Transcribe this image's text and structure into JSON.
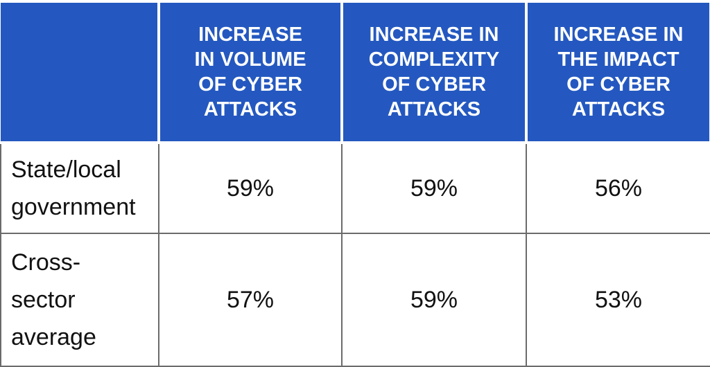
{
  "chart_data": {
    "type": "table",
    "columns": [
      "INCREASE IN VOLUME OF CYBER ATTACKS",
      "INCREASE IN COMPLEXITY OF CYBER ATTACKS",
      "INCREASE IN THE IMPACT OF CYBER ATTACKS"
    ],
    "rows": [
      {
        "label": "State/local government",
        "values": [
          "59%",
          "59%",
          "56%"
        ]
      },
      {
        "label": "Cross-sector average",
        "values": [
          "57%",
          "59%",
          "53%"
        ]
      }
    ],
    "colors": {
      "header_bg": "#2458c0",
      "header_text": "#ffffff",
      "body_text": "#111111",
      "grid": "#6b6b6b"
    }
  },
  "display": {
    "header_lines": [
      [
        "INCREASE",
        "IN VOLUME",
        "OF CYBER",
        "ATTACKS"
      ],
      [
        "INCREASE IN",
        "COMPLEXITY",
        "OF CYBER",
        "ATTACKS"
      ],
      [
        "INCREASE IN",
        "THE IMPACT",
        "OF CYBER",
        "ATTACKS"
      ]
    ],
    "row_label_lines": [
      [
        "State/local",
        "government"
      ],
      [
        "Cross-",
        "sector",
        "average"
      ]
    ]
  }
}
